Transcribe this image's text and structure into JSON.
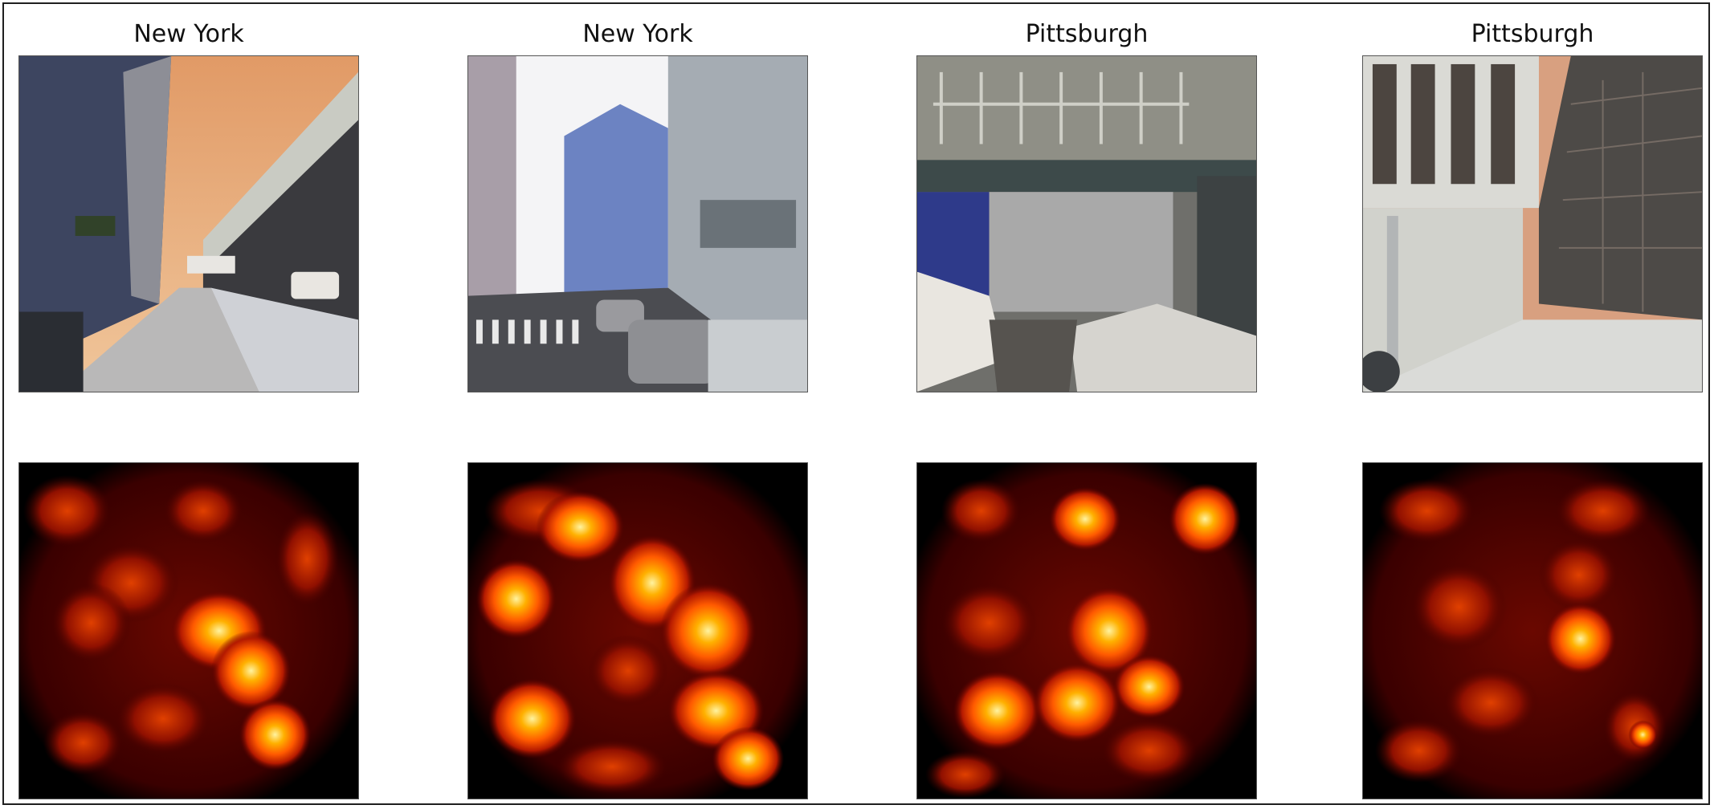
{
  "panels": [
    {
      "title": "New York",
      "photo_icon": "street-photo-icon",
      "map_icon": "saliency-heatmap-icon"
    },
    {
      "title": "New York",
      "photo_icon": "street-photo-icon",
      "map_icon": "saliency-heatmap-icon"
    },
    {
      "title": "Pittsburgh",
      "photo_icon": "street-photo-icon",
      "map_icon": "saliency-heatmap-icon"
    },
    {
      "title": "Pittsburgh",
      "photo_icon": "street-photo-icon",
      "map_icon": "saliency-heatmap-icon"
    }
  ],
  "heatmap_colors": [
    "#000000",
    "#5a0000",
    "#b51a00",
    "#ff5a00",
    "#ffb000",
    "#fff3a0"
  ]
}
